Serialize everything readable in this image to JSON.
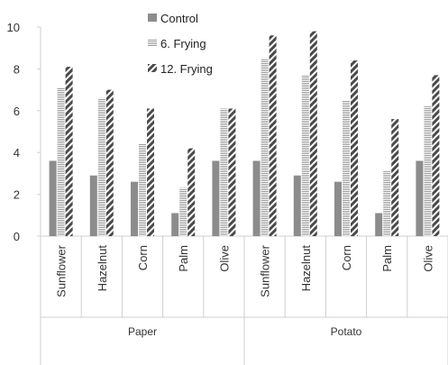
{
  "chart_data": {
    "type": "bar",
    "ylim": [
      0,
      10
    ],
    "yticks": [
      0,
      2,
      4,
      6,
      8,
      10
    ],
    "grid": false,
    "legend_position": "top",
    "groups": [
      {
        "name": "Paper",
        "categories": [
          "Sunflower",
          "Hazelnut",
          "Corn",
          "Palm",
          "Olive"
        ]
      },
      {
        "name": "Potato",
        "categories": [
          "Sunflower",
          "Hazelnut",
          "Corn",
          "Palm",
          "Olive"
        ]
      }
    ],
    "series": [
      {
        "name": "Control",
        "pattern": "solid",
        "color": "#8c8c8c",
        "values": [
          3.6,
          2.9,
          2.6,
          1.1,
          3.6,
          3.6,
          2.9,
          2.6,
          1.1,
          3.6
        ]
      },
      {
        "name": "6. Frying",
        "pattern": "dense-horizontal-lines",
        "color": "#a6a6a6",
        "values": [
          7.1,
          6.6,
          4.4,
          2.3,
          6.1,
          8.5,
          7.7,
          6.5,
          3.1,
          6.2
        ]
      },
      {
        "name": "12. Frying",
        "pattern": "diagonal-stripes",
        "color": "#555555",
        "values": [
          8.1,
          7.0,
          6.1,
          4.2,
          6.1,
          9.6,
          9.8,
          8.4,
          5.6,
          7.7
        ]
      }
    ]
  }
}
